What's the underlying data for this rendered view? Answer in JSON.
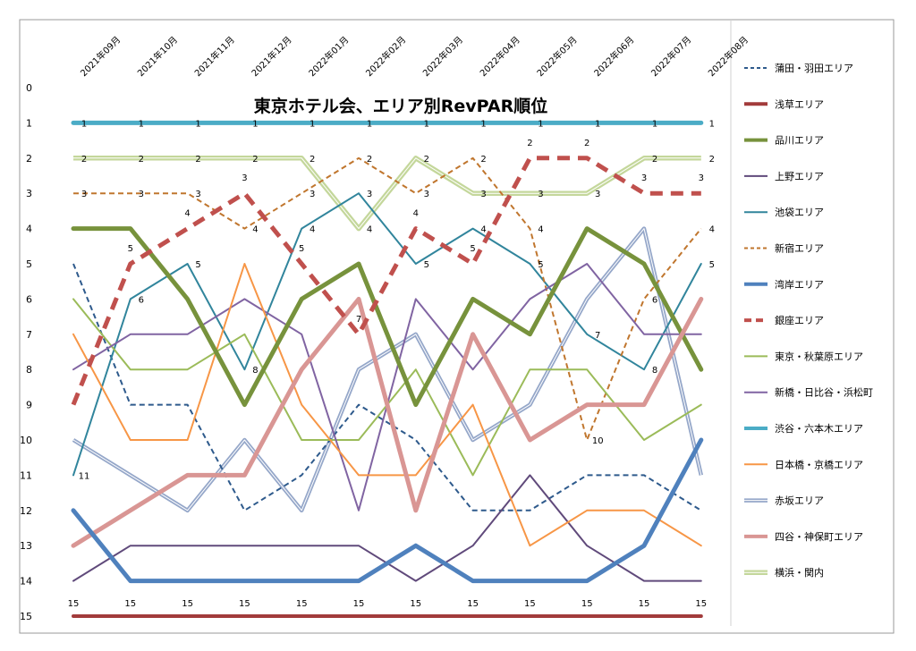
{
  "chart_data": {
    "type": "line",
    "title": "東京ホテル会、エリア別RevPAR順位",
    "categories": [
      "2021年09月",
      "2021年10月",
      "2021年11月",
      "2021年12月",
      "2022年01月",
      "2022年02月",
      "2022年03月",
      "2022年04月",
      "2022年05月",
      "2022年06月",
      "2022年07月",
      "2022年08月"
    ],
    "y_axis": {
      "min": 0,
      "max": 15,
      "inverted": true,
      "ticks": [
        0,
        1,
        2,
        3,
        4,
        5,
        6,
        7,
        8,
        9,
        10,
        11,
        12,
        13,
        14,
        15
      ]
    },
    "grid": false,
    "legend_position": "right",
    "series": [
      {
        "name": "蒲田・羽田エリア",
        "color": "#2e5a8c",
        "style": "dashed",
        "width": 2,
        "values": [
          5,
          9,
          9,
          12,
          11,
          9,
          10,
          12,
          12,
          11,
          11,
          12
        ]
      },
      {
        "name": "浅草エリア",
        "color": "#a23b3b",
        "style": "solid",
        "width": 4,
        "values": [
          15,
          15,
          15,
          15,
          15,
          15,
          15,
          15,
          15,
          15,
          15,
          15
        ]
      },
      {
        "name": "品川エリア",
        "color": "#77923c",
        "style": "solid",
        "width": 5,
        "values": [
          4,
          4,
          6,
          9,
          6,
          5,
          9,
          6,
          7,
          4,
          5,
          8
        ]
      },
      {
        "name": "上野エリア",
        "color": "#604a7b",
        "style": "solid",
        "width": 2,
        "values": [
          14,
          13,
          13,
          13,
          13,
          13,
          14,
          13,
          11,
          13,
          14,
          14
        ]
      },
      {
        "name": "池袋エリア",
        "color": "#31859c",
        "style": "solid",
        "width": 2,
        "values": [
          11,
          6,
          5,
          8,
          4,
          3,
          5,
          4,
          5,
          7,
          8,
          5
        ]
      },
      {
        "name": "新宿エリア",
        "color": "#c0762e",
        "style": "dashed",
        "width": 2,
        "values": [
          3,
          3,
          3,
          4,
          3,
          2,
          3,
          2,
          4,
          10,
          6,
          4
        ]
      },
      {
        "name": "湾岸エリア",
        "color": "#4f81bd",
        "style": "solid",
        "width": 5,
        "values": [
          12,
          14,
          14,
          14,
          14,
          14,
          13,
          14,
          14,
          14,
          13,
          10
        ]
      },
      {
        "name": "銀座エリア",
        "color": "#c0504d",
        "style": "dashed",
        "width": 5,
        "values": [
          9,
          5,
          4,
          3,
          5,
          7,
          4,
          5,
          2,
          2,
          3,
          3
        ]
      },
      {
        "name": "東京・秋葉原エリア",
        "color": "#9bbb59",
        "style": "solid",
        "width": 2,
        "values": [
          6,
          8,
          8,
          7,
          10,
          10,
          8,
          11,
          8,
          8,
          10,
          9
        ]
      },
      {
        "name": "新橋・日比谷・浜松町",
        "color": "#8064a2",
        "style": "solid",
        "width": 2,
        "values": [
          8,
          7,
          7,
          6,
          7,
          12,
          6,
          8,
          6,
          5,
          7,
          7
        ]
      },
      {
        "name": "渋谷・六本木エリア",
        "color": "#4bacc6",
        "style": "solid",
        "width": 5,
        "values": [
          1,
          1,
          1,
          1,
          1,
          1,
          1,
          1,
          1,
          1,
          1,
          1
        ]
      },
      {
        "name": "日本橋・京橋エリア",
        "color": "#f79646",
        "style": "solid",
        "width": 2,
        "values": [
          7,
          10,
          10,
          5,
          9,
          11,
          11,
          9,
          13,
          12,
          12,
          13
        ]
      },
      {
        "name": "赤坂エリア",
        "color": "#95a7c9",
        "style": "double",
        "width": 3,
        "values": [
          10,
          11,
          12,
          10,
          12,
          8,
          7,
          10,
          9,
          6,
          4,
          11
        ]
      },
      {
        "name": "四谷・神保町エリア",
        "color": "#d99694",
        "style": "solid",
        "width": 5,
        "values": [
          13,
          12,
          11,
          11,
          8,
          6,
          12,
          7,
          10,
          9,
          9,
          6
        ]
      },
      {
        "name": "横浜・関内",
        "color": "#c4d79b",
        "style": "double",
        "width": 4,
        "values": [
          2,
          2,
          2,
          2,
          2,
          4,
          2,
          3,
          3,
          3,
          2,
          2
        ]
      }
    ],
    "data_labels": [
      {
        "series": "渋谷・六本木エリア",
        "show": "all"
      },
      {
        "series": "横浜・関内",
        "show": "all"
      },
      {
        "series": "新宿エリア",
        "show": "all"
      },
      {
        "series": "池袋エリア",
        "show": "all"
      },
      {
        "series": "銀座エリア",
        "show": [
          1,
          2,
          3,
          4,
          5,
          6,
          7,
          8,
          9,
          10,
          11
        ]
      },
      {
        "series": "浅草エリア",
        "show": "all"
      }
    ]
  }
}
